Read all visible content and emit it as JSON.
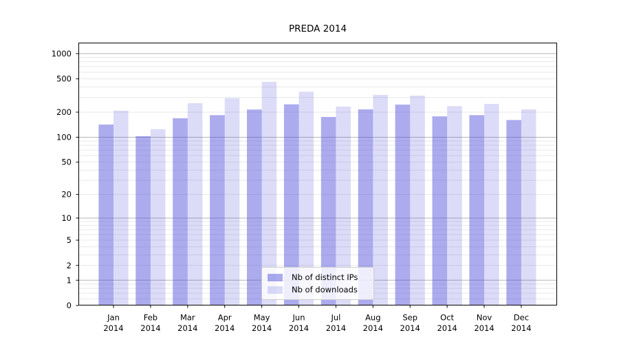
{
  "title": "PREDA 2014",
  "chart_data": {
    "type": "bar",
    "title": "PREDA 2014",
    "months": [
      "Jan",
      "Feb",
      "Mar",
      "Apr",
      "May",
      "Jun",
      "Jul",
      "Aug",
      "Sep",
      "Oct",
      "Nov",
      "Dec"
    ],
    "year": "2014",
    "series": [
      {
        "name": "Nb of distinct IPs",
        "color": "rgba(80,80,220,0.48)",
        "values": [
          142,
          103,
          169,
          184,
          215,
          248,
          175,
          216,
          246,
          178,
          184,
          161
        ]
      },
      {
        "name": "Nb of downloads",
        "color": "rgba(80,80,220,0.20)",
        "values": [
          208,
          125,
          256,
          294,
          460,
          351,
          233,
          322,
          315,
          236,
          251,
          216
        ]
      }
    ],
    "y_ticks": [
      0,
      1,
      2,
      5,
      10,
      20,
      50,
      100,
      200,
      500,
      1000
    ],
    "y_scale": "log10(1+y)",
    "ylim": [
      0,
      1351
    ],
    "grid": true,
    "legend_position": "lower center",
    "colors": {
      "major_grid": "#b4b4b4",
      "minor_grid": "#e8e8e8",
      "spine": "#000000",
      "text": "#000000"
    }
  }
}
